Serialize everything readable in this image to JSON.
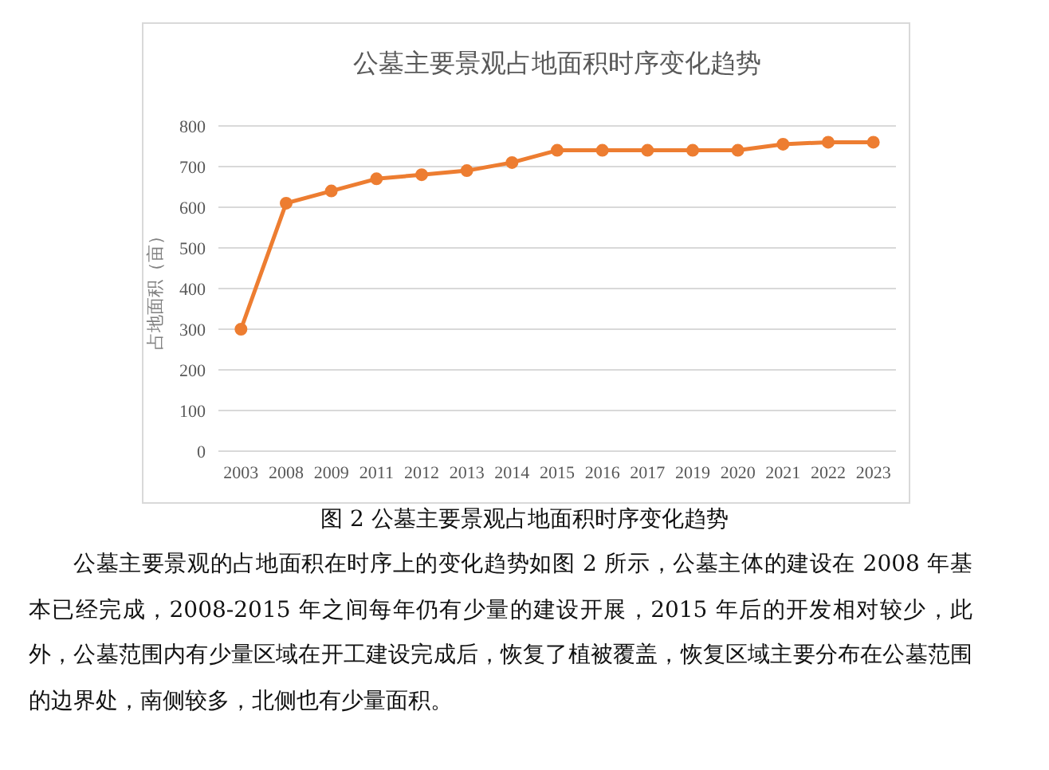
{
  "chart_data": {
    "type": "line",
    "title": "公墓主要景观占地面积时序变化趋势",
    "ylabel": "占地面积（亩）",
    "categories": [
      "2003",
      "2008",
      "2009",
      "2011",
      "2012",
      "2013",
      "2014",
      "2015",
      "2016",
      "2017",
      "2019",
      "2020",
      "2021",
      "2022",
      "2023"
    ],
    "series": [
      {
        "color": "#ed7d31",
        "values": [
          300,
          610,
          640,
          670,
          680,
          690,
          710,
          740,
          740,
          740,
          740,
          740,
          755,
          760,
          760
        ]
      }
    ],
    "ylim": [
      0,
      800
    ],
    "yticks": [
      0,
      100,
      200,
      300,
      400,
      500,
      600,
      700,
      800
    ],
    "grid": "y",
    "marker": "circle",
    "line_style": "solid",
    "annotations": [
      "图 2  公墓主要景观占地面积时序变化趋势",
      "公墓主要景观的占地面积在时序上的变化趋势如图 2 所示，公墓主体的建设在 2008 年基本已经完成，2008-2015 年之间每年仍有少量的建设开展，2015 年后的开发相对较少，此外，公墓范围内有少量区域在开工建设完成后，恢复了植被覆盖，恢复区域主要分布在公墓范围的边界处，南侧较多，北侧也有少量面积。"
    ]
  }
}
